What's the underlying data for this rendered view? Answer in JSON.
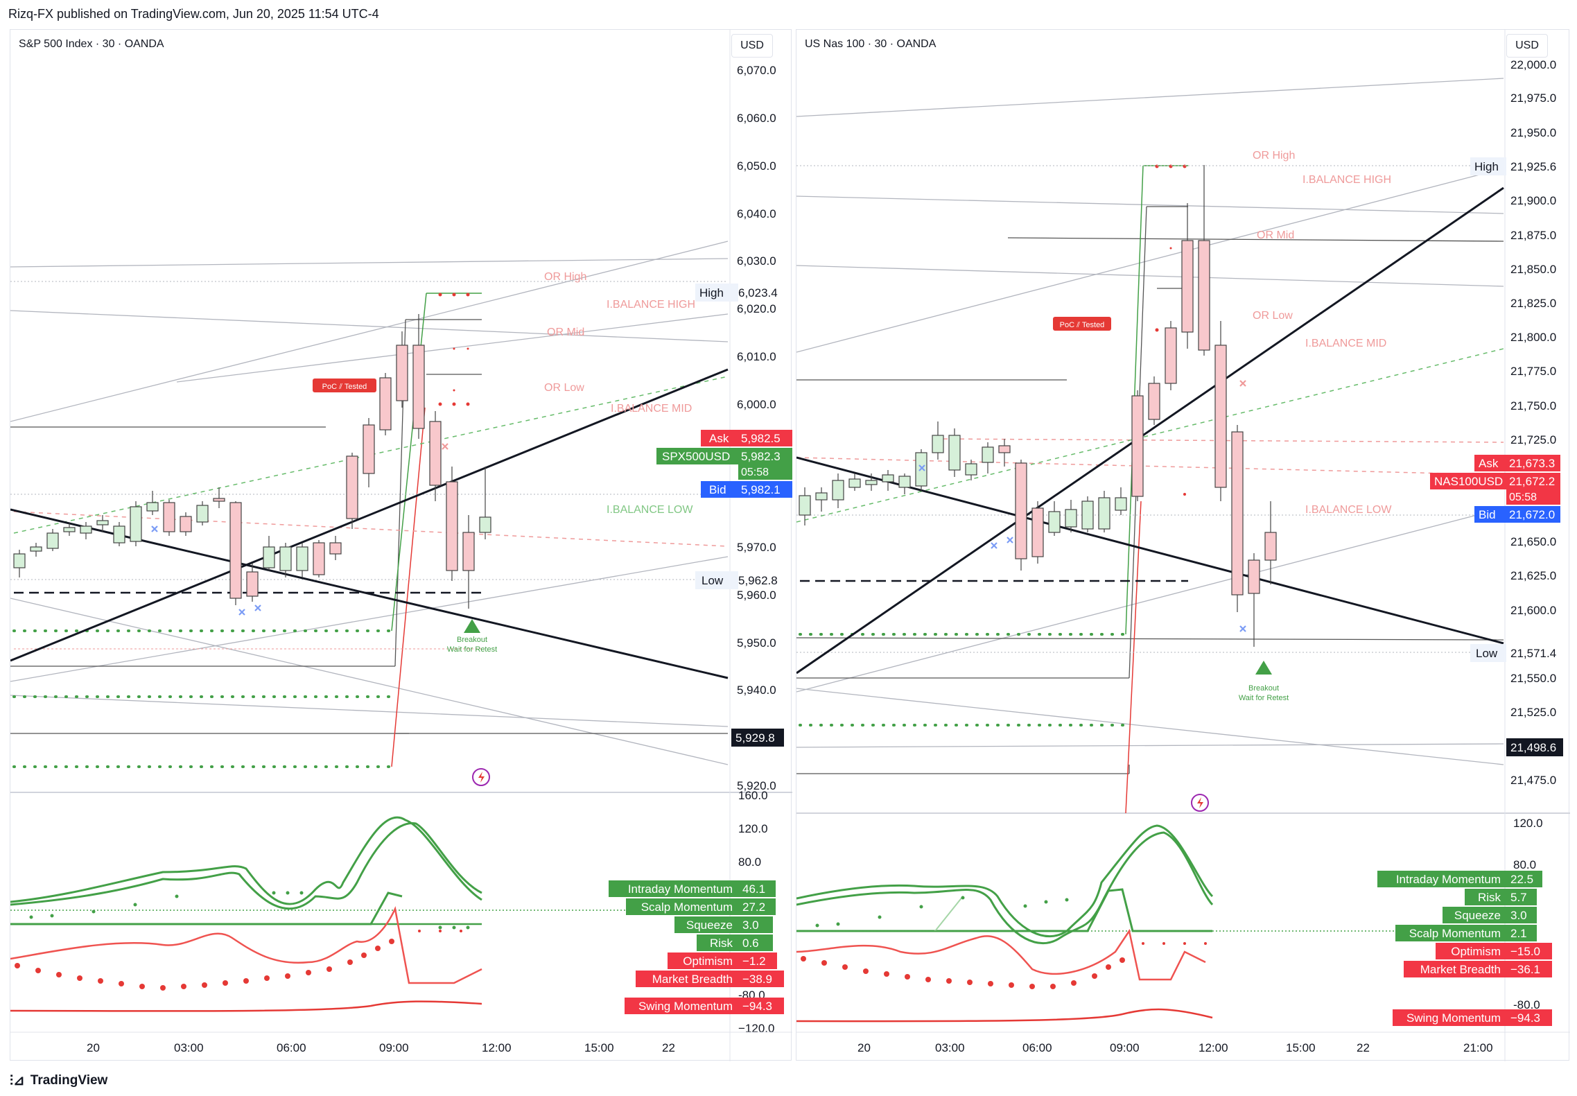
{
  "header": {
    "publisher": "Rizq-FX published on TradingView.com, Jun 20, 2025 11:54 UTC-4"
  },
  "footer": {
    "brand": "TradingView"
  },
  "colors": {
    "up": "#d6f0d9",
    "down": "#f8c8cc",
    "green": "#43a047",
    "red": "#e53935",
    "blue": "#2962ff"
  },
  "left": {
    "title": "S&P 500 Index · 30 · OANDA",
    "currency": "USD",
    "price_ticks": [
      "6,070.0",
      "6,060.0",
      "6,050.0",
      "6,040.0",
      "6,030.0",
      "6,020.0",
      "6,010.0",
      "6,000.0",
      "5,970.0",
      "5,960.0",
      "5,950.0",
      "5,940.0",
      "5,920.0"
    ],
    "levels": {
      "high_label": "High",
      "high": "6,023.4",
      "low_label": "Low",
      "low": "5,962.8",
      "ask_label": "Ask",
      "ask": "5,982.5",
      "symbol": "SPX500USD",
      "price": "5,982.3",
      "countdown": "05:58",
      "bid_label": "Bid",
      "bid": "5,982.1",
      "lower": "5,929.8"
    },
    "annotations": {
      "or_high": "OR High",
      "ib_high": "I.BALANCE HIGH",
      "or_mid": "OR Mid",
      "or_low": "OR Low",
      "ib_mid": "I.BALANCE MID",
      "ib_low": "I.BALANCE LOW",
      "poc": "PoC ⫽ Tested",
      "breakout": "Breakout",
      "retest": "Wait for Retest"
    },
    "ind_ticks": [
      "160.0",
      "120.0",
      "80.0",
      "-80.0",
      "−120.0"
    ],
    "indicators": {
      "intraday_momentum": {
        "label": "Intraday Momentum",
        "value": "46.1"
      },
      "scalp_momentum": {
        "label": "Scalp Momentum",
        "value": "27.2"
      },
      "squeeze": {
        "label": "Squeeze",
        "value": "3.0"
      },
      "risk": {
        "label": "Risk",
        "value": "0.6"
      },
      "optimism": {
        "label": "Optimism",
        "value": "−1.2"
      },
      "market_breadth": {
        "label": "Market Breadth",
        "value": "−38.9"
      },
      "swing_momentum": {
        "label": "Swing Momentum",
        "value": "−94.3"
      }
    },
    "time_ticks": [
      "20",
      "03:00",
      "06:00",
      "09:00",
      "12:00",
      "15:00",
      "22"
    ]
  },
  "right": {
    "title": "US Nas 100 · 30 · OANDA",
    "currency": "USD",
    "price_ticks": [
      "22,000.0",
      "21,975.0",
      "21,950.0",
      "21,900.0",
      "21,875.0",
      "21,850.0",
      "21,825.0",
      "21,800.0",
      "21,775.0",
      "21,750.0",
      "21,725.0",
      "21,650.0",
      "21,625.0",
      "21,600.0",
      "21,550.0",
      "21,525.0",
      "21,475.0"
    ],
    "levels": {
      "high_label": "High",
      "high": "21,925.6",
      "low_label": "Low",
      "low": "21,571.4",
      "ask_label": "Ask",
      "ask": "21,673.3",
      "symbol": "NAS100USD",
      "price": "21,672.2",
      "countdown": "05:58",
      "bid_label": "Bid",
      "bid": "21,672.0",
      "lower": "21,498.6"
    },
    "annotations": {
      "or_high": "OR High",
      "ib_high": "I.BALANCE HIGH",
      "or_mid": "OR Mid",
      "or_low": "OR Low",
      "ib_mid": "I.BALANCE MID",
      "ib_low": "I.BALANCE LOW",
      "poc": "PoC ⫽ Tested",
      "breakout": "Breakout",
      "retest": "Wait for Retest"
    },
    "ind_ticks": [
      "120.0",
      "80.0",
      "-80.0"
    ],
    "indicators": {
      "intraday_momentum": {
        "label": "Intraday Momentum",
        "value": "22.5"
      },
      "risk": {
        "label": "Risk",
        "value": "5.7"
      },
      "squeeze": {
        "label": "Squeeze",
        "value": "3.0"
      },
      "scalp_momentum": {
        "label": "Scalp Momentum",
        "value": "2.1"
      },
      "optimism": {
        "label": "Optimism",
        "value": "−15.0"
      },
      "market_breadth": {
        "label": "Market Breadth",
        "value": "−36.1"
      },
      "swing_momentum": {
        "label": "Swing Momentum",
        "value": "−94.3"
      }
    },
    "time_ticks": [
      "20",
      "03:00",
      "06:00",
      "09:00",
      "12:00",
      "15:00",
      "22",
      "21:00"
    ]
  }
}
